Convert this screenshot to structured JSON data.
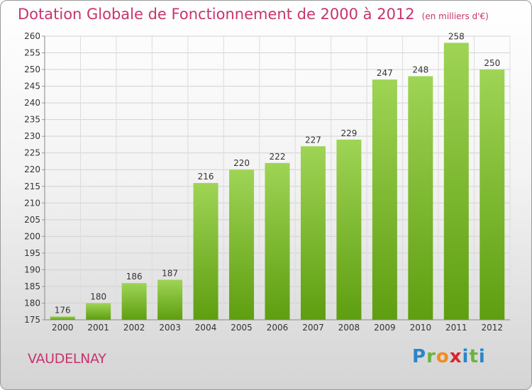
{
  "title": "Dotation Globale de Fonctionnement de 2000 à 2012",
  "unit": "(en milliers d'€)",
  "place": "VAUDELNAY",
  "logo": {
    "brand": "Proxiti",
    "p": "P",
    "r": "r",
    "o": "o",
    "x": "x",
    "i": "i",
    "t": "t",
    "i2": "i"
  },
  "colors": {
    "bar_top": "#9fd455",
    "bar_bottom": "#5e9e10",
    "title": "#c8336e"
  },
  "chart_data": {
    "type": "bar",
    "title": "Dotation Globale de Fonctionnement de 2000 à 2012",
    "xlabel": "",
    "ylabel": "",
    "categories": [
      "2000",
      "2001",
      "2002",
      "2003",
      "2004",
      "2005",
      "2006",
      "2007",
      "2008",
      "2009",
      "2010",
      "2011",
      "2012"
    ],
    "values": [
      176,
      180,
      186,
      187,
      216,
      220,
      222,
      227,
      229,
      247,
      248,
      258,
      250
    ],
    "ylim": [
      175,
      260
    ],
    "ytick_step": 5,
    "grid": true,
    "legend": "none"
  }
}
